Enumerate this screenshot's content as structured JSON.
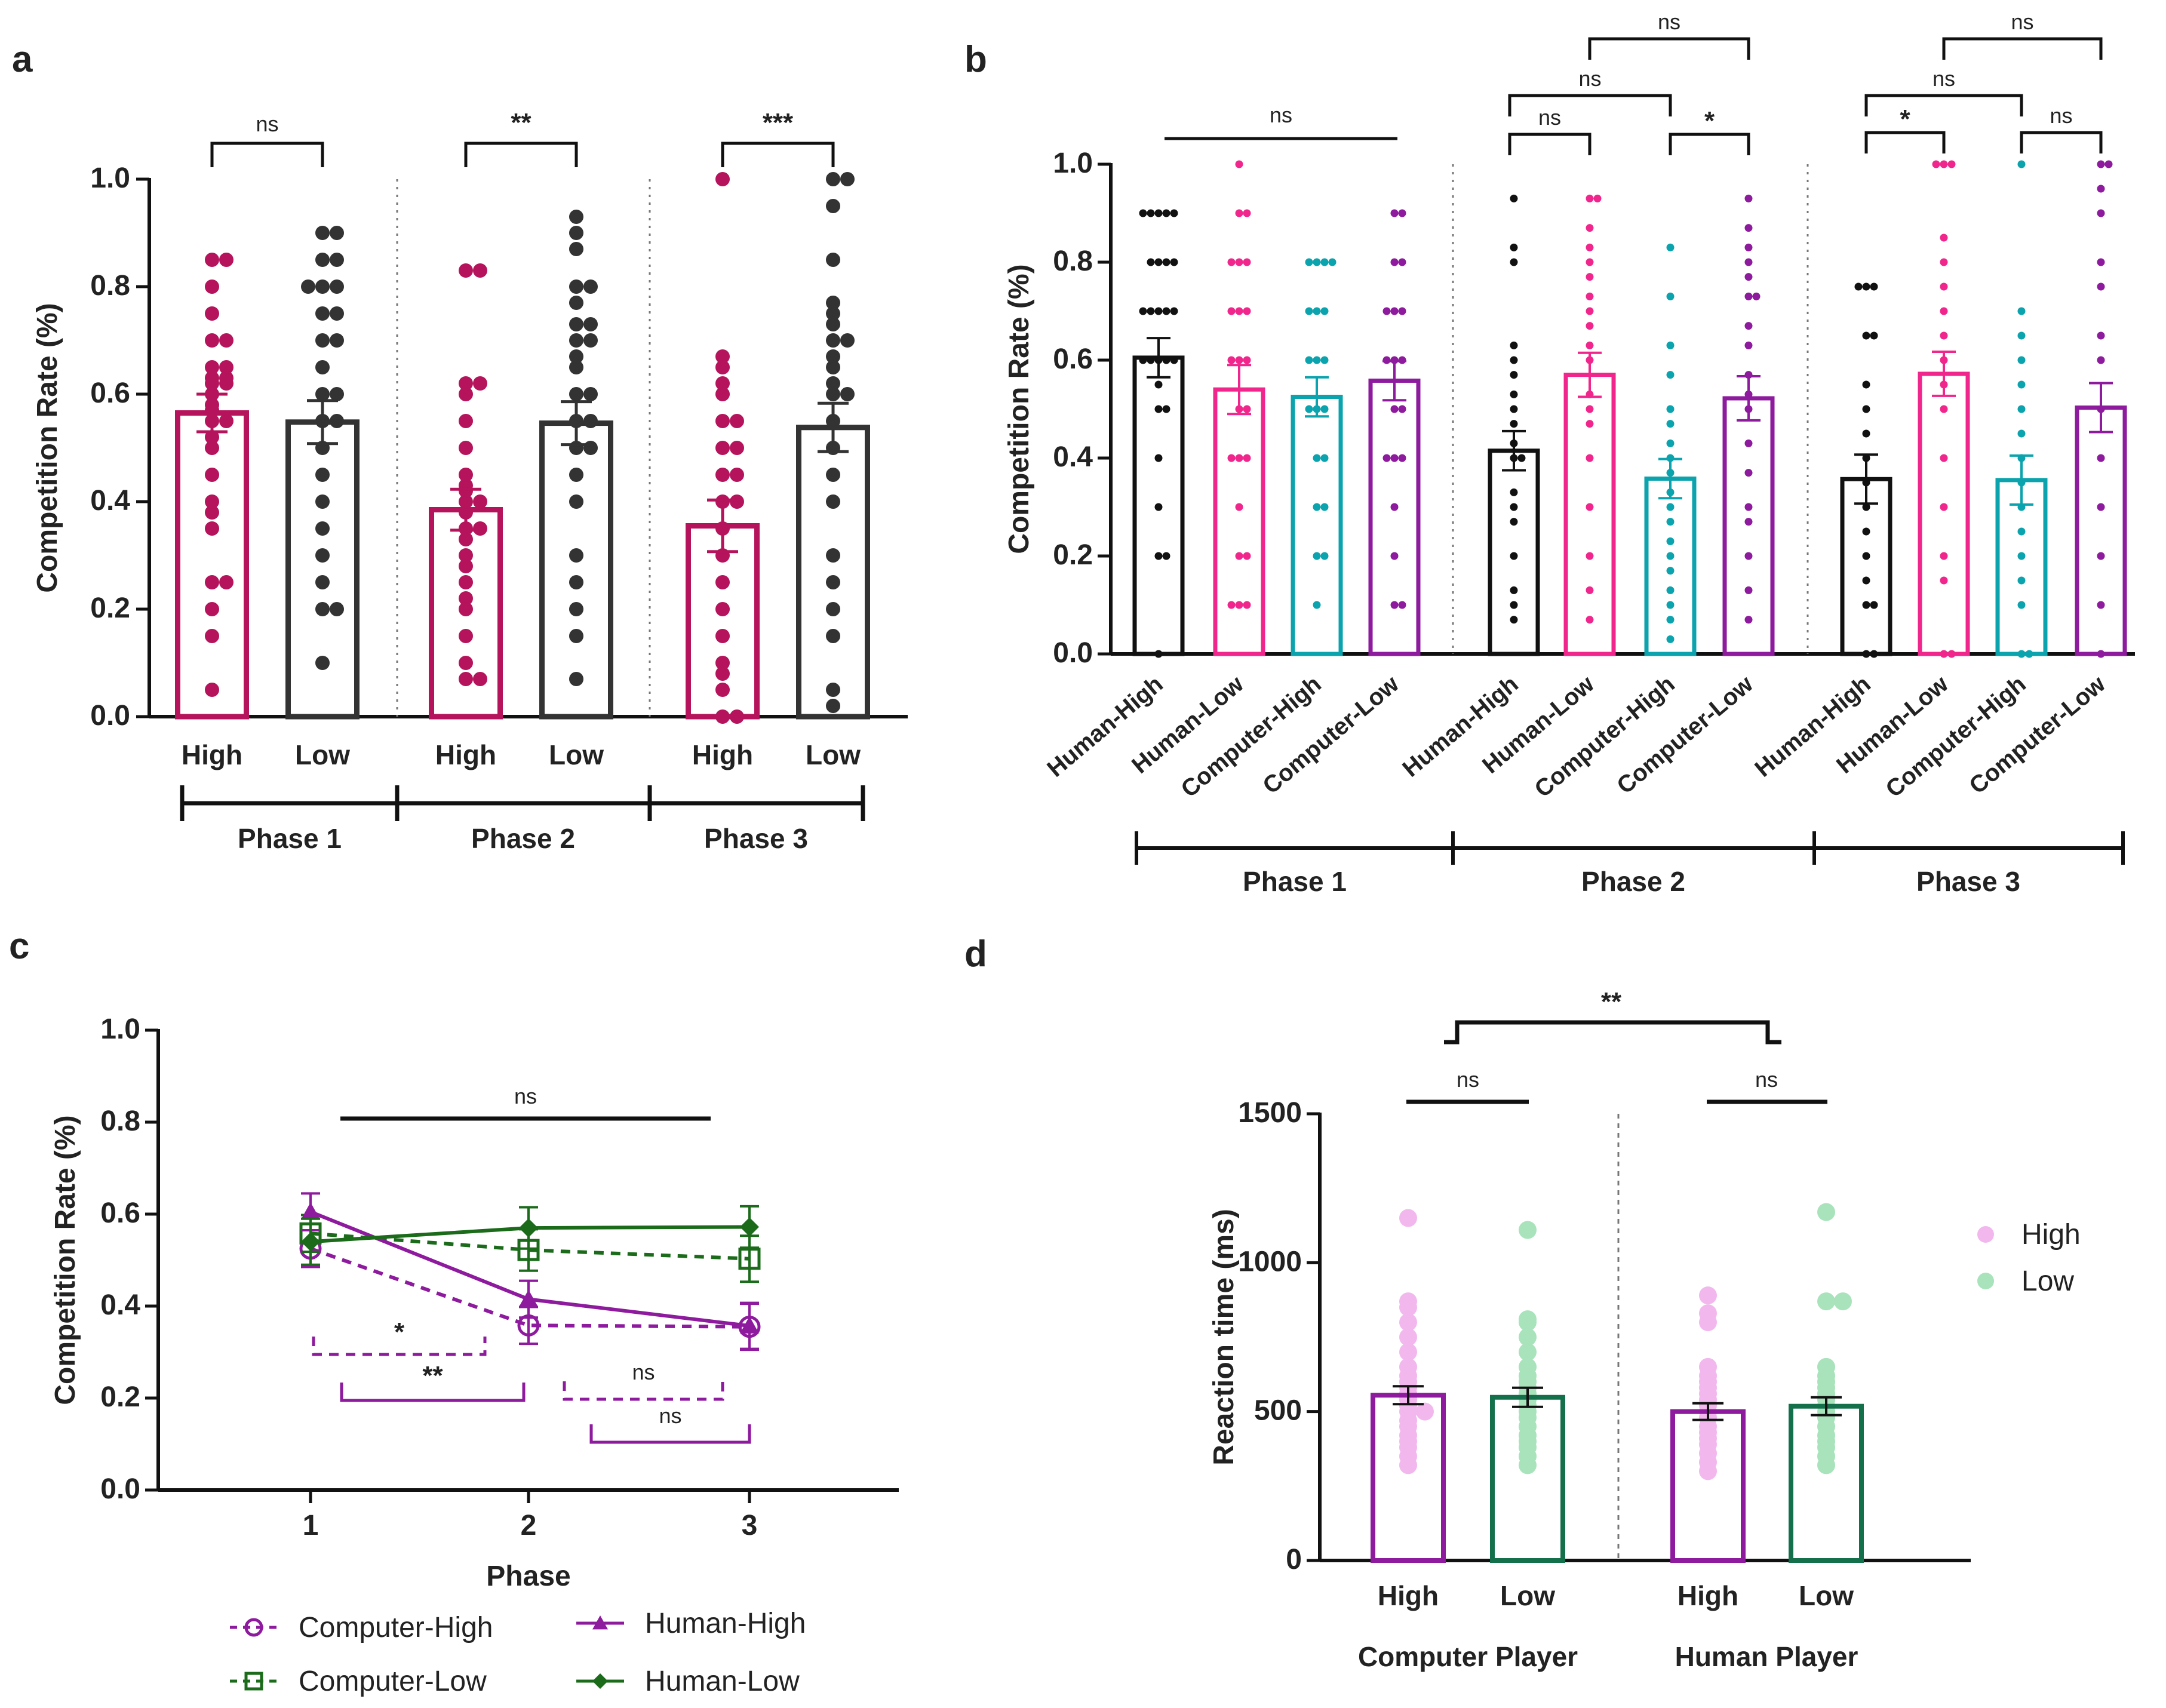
{
  "colors": {
    "crimson": "#B5135B",
    "dark": "#333333",
    "black": "#111111",
    "pink": "#F0268C",
    "teal": "#0BA3AD",
    "purple": "#8E1A9E",
    "darkgreen": "#1B6B1B",
    "lightpink": "#F2B8EE",
    "lightgreen": "#A8E3BB",
    "rt_green_bar": "#13704A"
  },
  "chart_data": [
    {
      "panel": "a",
      "type": "bar",
      "ylabel": "Competition Rate (%)",
      "ylim": [
        0,
        1.0
      ],
      "yticks": [
        "0.0",
        "0.2",
        "0.4",
        "0.6",
        "0.8",
        "1.0"
      ],
      "phases": [
        "Phase 1",
        "Phase 2",
        "Phase 3"
      ],
      "categories": [
        "High",
        "Low",
        "High",
        "Low",
        "High",
        "Low"
      ],
      "values": [
        0.565,
        0.548,
        0.385,
        0.546,
        0.355,
        0.538
      ],
      "sem": [
        0.035,
        0.04,
        0.038,
        0.04,
        0.048,
        0.045
      ],
      "significance": [
        "ns",
        "**",
        "***"
      ],
      "points": [
        [
          0.05,
          0.15,
          0.2,
          0.25,
          0.25,
          0.35,
          0.38,
          0.4,
          0.45,
          0.5,
          0.52,
          0.55,
          0.55,
          0.57,
          0.58,
          0.6,
          0.62,
          0.62,
          0.63,
          0.63,
          0.65,
          0.65,
          0.7,
          0.7,
          0.75,
          0.8,
          0.85,
          0.85
        ],
        [
          0.1,
          0.2,
          0.2,
          0.25,
          0.3,
          0.35,
          0.4,
          0.45,
          0.5,
          0.55,
          0.55,
          0.6,
          0.6,
          0.65,
          0.7,
          0.7,
          0.75,
          0.75,
          0.8,
          0.8,
          0.8,
          0.85,
          0.85,
          0.9,
          0.9
        ],
        [
          0.07,
          0.07,
          0.1,
          0.15,
          0.2,
          0.22,
          0.25,
          0.28,
          0.3,
          0.33,
          0.35,
          0.35,
          0.38,
          0.4,
          0.4,
          0.42,
          0.43,
          0.45,
          0.5,
          0.55,
          0.6,
          0.62,
          0.62,
          0.83,
          0.83
        ],
        [
          0.07,
          0.15,
          0.2,
          0.25,
          0.3,
          0.4,
          0.45,
          0.5,
          0.5,
          0.55,
          0.55,
          0.6,
          0.6,
          0.65,
          0.67,
          0.7,
          0.7,
          0.73,
          0.73,
          0.77,
          0.8,
          0.8,
          0.87,
          0.9,
          0.93
        ],
        [
          0,
          0,
          0.05,
          0.08,
          0.1,
          0.15,
          0.2,
          0.25,
          0.3,
          0.35,
          0.4,
          0.4,
          0.45,
          0.45,
          0.5,
          0.5,
          0.55,
          0.55,
          0.6,
          0.62,
          0.65,
          0.67,
          1.0
        ],
        [
          0.02,
          0.05,
          0.15,
          0.2,
          0.25,
          0.3,
          0.4,
          0.45,
          0.5,
          0.55,
          0.6,
          0.6,
          0.62,
          0.65,
          0.67,
          0.7,
          0.7,
          0.73,
          0.75,
          0.77,
          0.85,
          0.95,
          1.0,
          1.0
        ]
      ]
    },
    {
      "panel": "b",
      "type": "bar",
      "ylabel": "Competition Rate (%)",
      "ylim": [
        0,
        1.0
      ],
      "yticks": [
        "0.0",
        "0.2",
        "0.4",
        "0.6",
        "0.8",
        "1.0"
      ],
      "phases": [
        "Phase 1",
        "Phase 2",
        "Phase 3"
      ],
      "categories": [
        "Human-High",
        "Human-Low",
        "Computer-High",
        "Computer-Low",
        "Human-High",
        "Human-Low",
        "Computer-High",
        "Computer-Low",
        "Human-High",
        "Human-Low",
        "Computer-High",
        "Computer-Low"
      ],
      "values": [
        0.605,
        0.54,
        0.525,
        0.558,
        0.415,
        0.57,
        0.358,
        0.522,
        0.357,
        0.572,
        0.355,
        0.503
      ],
      "sem": [
        0.04,
        0.05,
        0.04,
        0.04,
        0.04,
        0.045,
        0.04,
        0.045,
        0.05,
        0.045,
        0.05,
        0.05
      ],
      "significance": [
        {
          "label": "ns"
        },
        {
          "label": "ns"
        },
        {
          "label": "ns"
        },
        {
          "label": "*"
        },
        {
          "label": "ns"
        },
        {
          "label": "*"
        },
        {
          "label": "ns"
        },
        {
          "label": "ns"
        },
        {
          "label": "ns"
        }
      ],
      "points": [
        [
          0,
          0.2,
          0.2,
          0.3,
          0.4,
          0.5,
          0.5,
          0.55,
          0.6,
          0.6,
          0.6,
          0.6,
          0.6,
          0.7,
          0.7,
          0.7,
          0.7,
          0.7,
          0.8,
          0.8,
          0.8,
          0.8,
          0.9,
          0.9,
          0.9,
          0.9,
          0.9
        ],
        [
          0.1,
          0.1,
          0.1,
          0.2,
          0.2,
          0.3,
          0.4,
          0.4,
          0.4,
          0.5,
          0.5,
          0.6,
          0.6,
          0.6,
          0.7,
          0.7,
          0.7,
          0.8,
          0.8,
          0.8,
          0.9,
          0.9,
          1.0
        ],
        [
          0.1,
          0.2,
          0.2,
          0.3,
          0.3,
          0.4,
          0.4,
          0.5,
          0.5,
          0.5,
          0.6,
          0.6,
          0.6,
          0.7,
          0.7,
          0.7,
          0.8,
          0.8,
          0.8,
          0.8
        ],
        [
          0.1,
          0.1,
          0.2,
          0.3,
          0.4,
          0.4,
          0.4,
          0.5,
          0.5,
          0.6,
          0.6,
          0.6,
          0.7,
          0.7,
          0.7,
          0.8,
          0.8,
          0.9,
          0.9
        ],
        [
          0.07,
          0.1,
          0.13,
          0.2,
          0.27,
          0.3,
          0.33,
          0.4,
          0.4,
          0.43,
          0.47,
          0.5,
          0.53,
          0.57,
          0.6,
          0.63,
          0.8,
          0.83,
          0.93
        ],
        [
          0.07,
          0.13,
          0.2,
          0.3,
          0.4,
          0.47,
          0.5,
          0.53,
          0.6,
          0.63,
          0.67,
          0.7,
          0.73,
          0.77,
          0.8,
          0.83,
          0.87,
          0.93,
          0.93
        ],
        [
          0.03,
          0.07,
          0.1,
          0.13,
          0.17,
          0.2,
          0.23,
          0.27,
          0.3,
          0.33,
          0.37,
          0.4,
          0.43,
          0.47,
          0.5,
          0.57,
          0.63,
          0.73,
          0.83
        ],
        [
          0.07,
          0.13,
          0.2,
          0.27,
          0.3,
          0.37,
          0.43,
          0.5,
          0.53,
          0.57,
          0.63,
          0.67,
          0.73,
          0.73,
          0.77,
          0.8,
          0.83,
          0.87,
          0.93
        ],
        [
          0,
          0,
          0.1,
          0.1,
          0.15,
          0.2,
          0.25,
          0.3,
          0.35,
          0.4,
          0.45,
          0.5,
          0.55,
          0.65,
          0.65,
          0.75,
          0.75,
          0.75
        ],
        [
          0,
          0,
          0.15,
          0.2,
          0.3,
          0.4,
          0.5,
          0.55,
          0.6,
          0.65,
          0.7,
          0.75,
          0.8,
          0.85,
          1.0,
          1.0,
          1.0
        ],
        [
          0,
          0,
          0.1,
          0.15,
          0.2,
          0.25,
          0.3,
          0.35,
          0.4,
          0.45,
          0.5,
          0.55,
          0.6,
          0.65,
          0.7,
          1.0
        ],
        [
          0,
          0.1,
          0.2,
          0.3,
          0.4,
          0.5,
          0.6,
          0.65,
          0.75,
          0.8,
          0.9,
          0.95,
          1.0,
          1.0
        ]
      ]
    },
    {
      "panel": "c",
      "type": "line",
      "xlabel": "Phase",
      "ylabel": "Competition Rate (%)",
      "x": [
        1,
        2,
        3
      ],
      "xticks": [
        "1",
        "2",
        "3"
      ],
      "ylim": [
        0,
        1.0
      ],
      "yticks": [
        "0.0",
        "0.2",
        "0.4",
        "0.6",
        "0.8",
        "1.0"
      ],
      "series": [
        {
          "name": "Computer-High",
          "values": [
            0.525,
            0.358,
            0.355
          ],
          "sem": [
            0.04,
            0.04,
            0.05
          ]
        },
        {
          "name": "Computer-Low",
          "values": [
            0.558,
            0.522,
            0.503
          ],
          "sem": [
            0.04,
            0.045,
            0.05
          ]
        },
        {
          "name": "Human-High",
          "values": [
            0.605,
            0.415,
            0.357
          ],
          "sem": [
            0.04,
            0.04,
            0.05
          ]
        },
        {
          "name": "Human-Low",
          "values": [
            0.54,
            0.57,
            0.572
          ],
          "sem": [
            0.05,
            0.045,
            0.045
          ]
        }
      ],
      "significance": [
        "ns",
        "*",
        "**",
        "ns",
        "ns"
      ]
    },
    {
      "panel": "d",
      "type": "bar",
      "ylabel": "Reaction time (ms)",
      "ylim": [
        0,
        1500
      ],
      "yticks": [
        "0",
        "500",
        "1000",
        "1500"
      ],
      "groups": [
        "Computer Player",
        "Human Player"
      ],
      "categories": [
        "High",
        "Low",
        "High",
        "Low"
      ],
      "values": [
        555,
        548,
        500,
        518
      ],
      "sem": [
        30,
        32,
        28,
        30
      ],
      "legend": [
        "High",
        "Low"
      ],
      "significance": [
        "**",
        "ns",
        "ns"
      ],
      "points": [
        [
          320,
          350,
          380,
          400,
          420,
          450,
          470,
          500,
          500,
          520,
          540,
          550,
          560,
          580,
          600,
          620,
          650,
          700,
          750,
          800,
          850,
          870,
          1150
        ],
        [
          320,
          350,
          380,
          400,
          420,
          450,
          480,
          500,
          520,
          540,
          560,
          580,
          600,
          620,
          650,
          700,
          750,
          800,
          810,
          1110
        ],
        [
          300,
          330,
          360,
          390,
          410,
          430,
          450,
          480,
          500,
          520,
          540,
          560,
          580,
          600,
          620,
          650,
          800,
          830,
          890
        ],
        [
          320,
          350,
          380,
          400,
          420,
          450,
          480,
          500,
          520,
          540,
          560,
          580,
          600,
          620,
          650,
          870,
          870,
          1170
        ]
      ]
    }
  ]
}
